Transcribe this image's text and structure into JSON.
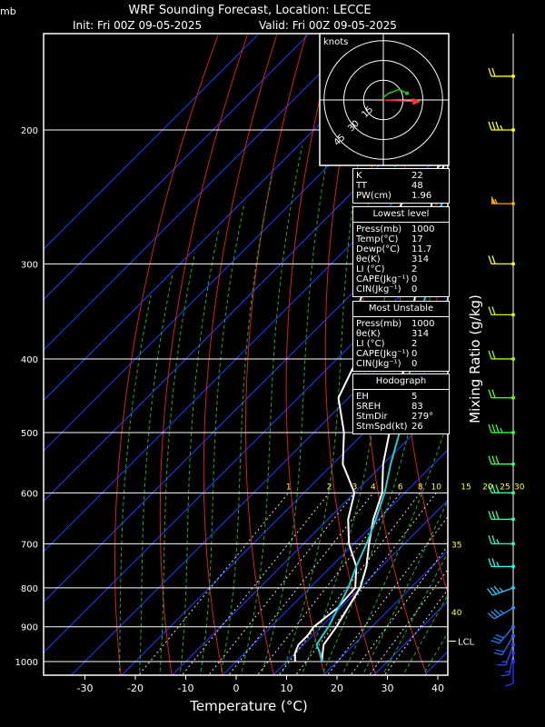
{
  "header": {
    "unit": "mb",
    "title": "WRF Sounding Forecast, Location: LECCE",
    "init": "Init: Fri 00Z 09-05-2025",
    "valid": "Valid: Fri 00Z 09-05-2025"
  },
  "hodograph": {
    "title": "knots",
    "ring_labels": [
      "15",
      "30",
      "45"
    ]
  },
  "indices": [
    {
      "label": "K",
      "value": "22"
    },
    {
      "label": "TT",
      "value": "48"
    },
    {
      "label": "PW(cm)",
      "value": "1.96"
    }
  ],
  "lowest_level": {
    "title": "Lowest level",
    "rows": [
      {
        "label": "Press(mb)",
        "value": "1000"
      },
      {
        "label": "Temp(°C)",
        "value": "17"
      },
      {
        "label": "Dewp(°C)",
        "value": "11.7"
      },
      {
        "label": "θe(K)",
        "value": "314"
      },
      {
        "label": "LI (°C)",
        "value": "2"
      },
      {
        "label": "CAPE(Jkg⁻¹)",
        "value": "0"
      },
      {
        "label": "CIN(Jkg⁻¹)",
        "value": "0"
      }
    ]
  },
  "most_unstable": {
    "title": "Most Unstable",
    "rows": [
      {
        "label": "Press(mb)",
        "value": "1000"
      },
      {
        "label": "θe(K)",
        "value": "314"
      },
      {
        "label": "LI (°C)",
        "value": "2"
      },
      {
        "label": "CAPE(Jkg⁻¹)",
        "value": "0"
      },
      {
        "label": "CIN(Jkg⁻¹)",
        "value": "0"
      }
    ]
  },
  "hodo_stats": {
    "title": "Hodograph",
    "rows": [
      {
        "label": "EH",
        "value": "5"
      },
      {
        "label": "SREH",
        "value": "83"
      },
      {
        "label": "StmDir",
        "value": "279°"
      },
      {
        "label": "StmSpd(kt)",
        "value": "26"
      }
    ]
  },
  "chart_data": {
    "type": "line",
    "xlabel": "Temperature (°C)",
    "ylabel": "mb",
    "right_label": "Mixing Ratio (g/kg)",
    "xlim": [
      -40,
      43
    ],
    "ylim": [
      1030,
      150
    ],
    "pressure_ticks": [
      200,
      300,
      400,
      500,
      600,
      700,
      800,
      900,
      1000
    ],
    "temp_ticks": [
      -30,
      -20,
      -10,
      0,
      10,
      20,
      30,
      40
    ],
    "mixing_ratio_labels": [
      "1",
      "2",
      "3",
      "4",
      "6",
      "8",
      "10",
      "15",
      "20",
      "25",
      "30"
    ],
    "side_labels": [
      {
        "text": "35",
        "p": 700
      },
      {
        "text": "40",
        "p": 860
      }
    ],
    "lcl": {
      "label": "LCL",
      "p": 940
    },
    "series": [
      {
        "key": "temperature",
        "color": "#ffffff",
        "points": [
          [
            1000,
            17
          ],
          [
            975,
            15.5
          ],
          [
            950,
            14
          ],
          [
            925,
            13.5
          ],
          [
            900,
            13
          ],
          [
            850,
            11.5
          ],
          [
            800,
            10
          ],
          [
            750,
            7
          ],
          [
            700,
            3
          ],
          [
            650,
            -1
          ],
          [
            600,
            -4.5
          ],
          [
            550,
            -10
          ],
          [
            500,
            -15
          ],
          [
            450,
            -21
          ],
          [
            400,
            -26
          ],
          [
            350,
            -34
          ],
          [
            300,
            -42
          ],
          [
            250,
            -52
          ],
          [
            200,
            -62
          ],
          [
            170,
            -68
          ]
        ]
      },
      {
        "key": "dewpoint",
        "color": "#ffffff",
        "points": [
          [
            1000,
            11.7
          ],
          [
            975,
            10
          ],
          [
            950,
            9
          ],
          [
            925,
            9
          ],
          [
            900,
            8.5
          ],
          [
            850,
            9.5
          ],
          [
            800,
            9
          ],
          [
            750,
            5
          ],
          [
            700,
            -1
          ],
          [
            650,
            -6
          ],
          [
            600,
            -10
          ],
          [
            550,
            -18
          ],
          [
            500,
            -24
          ],
          [
            450,
            -32
          ],
          [
            400,
            -36
          ],
          [
            350,
            -45
          ],
          [
            300,
            -52
          ],
          [
            250,
            -58
          ],
          [
            230,
            -57
          ],
          [
            200,
            -62
          ],
          [
            150,
            -70
          ]
        ]
      },
      {
        "key": "parcel",
        "color": "#22cccc",
        "points": [
          [
            1000,
            17
          ],
          [
            975,
            15
          ],
          [
            950,
            12.6
          ],
          [
            925,
            12
          ],
          [
            900,
            11.4
          ],
          [
            850,
            9.6
          ],
          [
            800,
            7.6
          ],
          [
            750,
            5
          ],
          [
            700,
            2.5
          ],
          [
            650,
            -0.5
          ],
          [
            600,
            -4
          ],
          [
            550,
            -8.5
          ],
          [
            500,
            -13
          ],
          [
            450,
            -19
          ],
          [
            400,
            -25
          ],
          [
            350,
            -32
          ],
          [
            300,
            -40
          ],
          [
            250,
            -50
          ],
          [
            200,
            -60
          ],
          [
            160,
            -70
          ]
        ]
      }
    ],
    "wind_barbs": [
      {
        "p": 170,
        "dir": 270,
        "spd": 20,
        "color": "#ffff00"
      },
      {
        "p": 200,
        "dir": 270,
        "spd": 35,
        "color": "#ffff00"
      },
      {
        "p": 250,
        "dir": 270,
        "spd": 55,
        "color": "#ffa500"
      },
      {
        "p": 300,
        "dir": 270,
        "spd": 20,
        "color": "#ffff00"
      },
      {
        "p": 350,
        "dir": 270,
        "spd": 20,
        "color": "#ccff00"
      },
      {
        "p": 400,
        "dir": 270,
        "spd": 20,
        "color": "#99ff00"
      },
      {
        "p": 450,
        "dir": 270,
        "spd": 20,
        "color": "#66ff00"
      },
      {
        "p": 500,
        "dir": 270,
        "spd": 35,
        "color": "#33ff33"
      },
      {
        "p": 550,
        "dir": 270,
        "spd": 30,
        "color": "#33ff66"
      },
      {
        "p": 600,
        "dir": 270,
        "spd": 30,
        "color": "#33ff99"
      },
      {
        "p": 650,
        "dir": 270,
        "spd": 30,
        "color": "#33ffaa"
      },
      {
        "p": 700,
        "dir": 270,
        "spd": 25,
        "color": "#22ffcc"
      },
      {
        "p": 750,
        "dir": 270,
        "spd": 25,
        "color": "#22ffee"
      },
      {
        "p": 800,
        "dir": 250,
        "spd": 35,
        "color": "#22ccff"
      },
      {
        "p": 850,
        "dir": 240,
        "spd": 35,
        "color": "#2299ff"
      },
      {
        "p": 900,
        "dir": 220,
        "spd": 30,
        "color": "#2277ff"
      },
      {
        "p": 925,
        "dir": 210,
        "spd": 20,
        "color": "#2266ff"
      },
      {
        "p": 950,
        "dir": 200,
        "spd": 15,
        "color": "#2255ff"
      },
      {
        "p": 975,
        "dir": 190,
        "spd": 15,
        "color": "#2244ff"
      },
      {
        "p": 1000,
        "dir": 180,
        "spd": 10,
        "color": "#2233ff"
      }
    ],
    "hodograph_points": [
      [
        0,
        2
      ],
      [
        4,
        5
      ],
      [
        12,
        8
      ],
      [
        16,
        6
      ],
      [
        18,
        5
      ]
    ],
    "storm_motion_dir": 279,
    "storm_motion_kt": 26
  }
}
